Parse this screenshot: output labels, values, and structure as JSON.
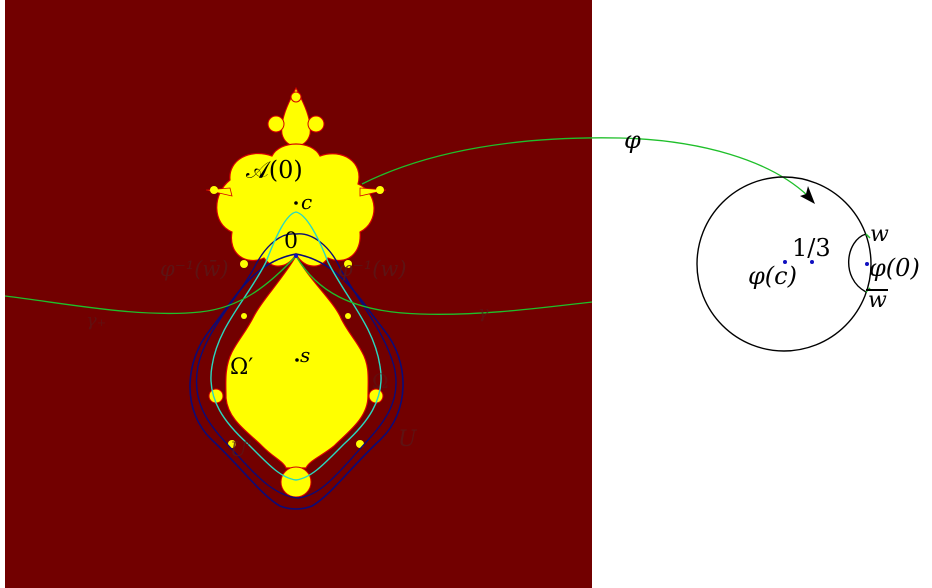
{
  "colors": {
    "background_outer": "#720000",
    "set_fill": "#ffff00",
    "set_edge": "#d40000",
    "dark_curve": "#0b0b78",
    "cyan_curve": "#2ad8c0",
    "green_curve": "#1fbf2a",
    "point": "#1010c0",
    "ink": "#000000"
  },
  "labels": {
    "phi_arrow": "φ",
    "A0": "𝒜(0)",
    "c_point": "c",
    "zero": "0",
    "phi_inv_wbar": "φ⁻¹(w̄)",
    "phi_inv_w": "φ⁻¹(w)",
    "gamma_left": "γ₊",
    "gamma_right": "γ",
    "s_point": "s",
    "omega_prime": "Ω′",
    "omega": "Ω",
    "U_prime": "U′",
    "U": "U",
    "one_third": "1/3",
    "phi_c": "φ(c)",
    "phi_0": "φ(0)",
    "w": "w",
    "w_bar": "w"
  }
}
